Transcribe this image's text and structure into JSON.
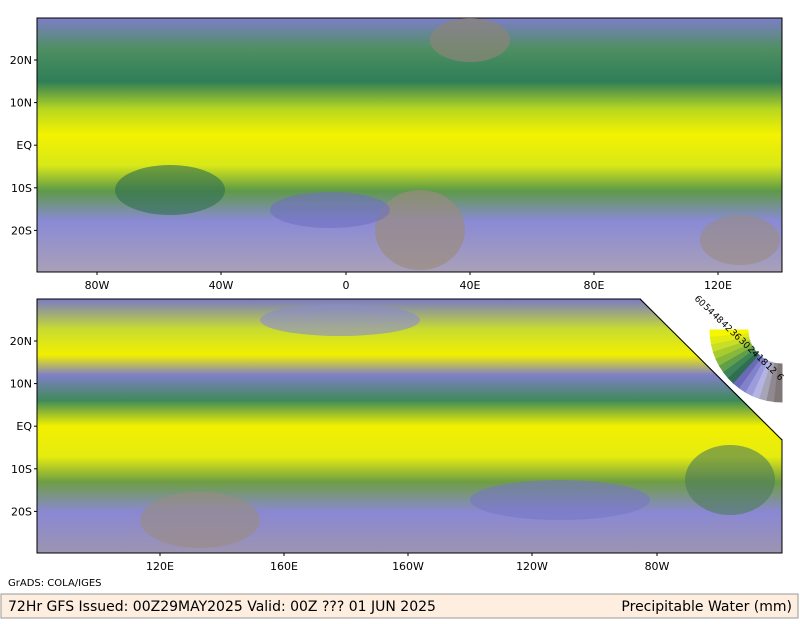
{
  "top_map": {
    "lat_labels": [
      "20N",
      "10N",
      "EQ",
      "10S",
      "20S"
    ],
    "lon_labels": [
      "80W",
      "40W",
      "0",
      "40E",
      "80E",
      "120E"
    ]
  },
  "bottom_map": {
    "lat_labels": [
      "20N",
      "10N",
      "EQ",
      "10S",
      "20S"
    ],
    "lon_labels": [
      "120E",
      "160E",
      "160W",
      "120W",
      "80W"
    ]
  },
  "colorbar": {
    "labels": [
      "60",
      "54",
      "48",
      "42",
      "36",
      "30",
      "24",
      "18",
      "12",
      "6"
    ]
  },
  "credit": "GrADS: COLA/IGES",
  "footer": {
    "left": "72Hr GFS Issued: 00Z29MAY2025 Valid: 00Z ??? 01 JUN 2025",
    "right": "Precipitable Water (mm)"
  }
}
